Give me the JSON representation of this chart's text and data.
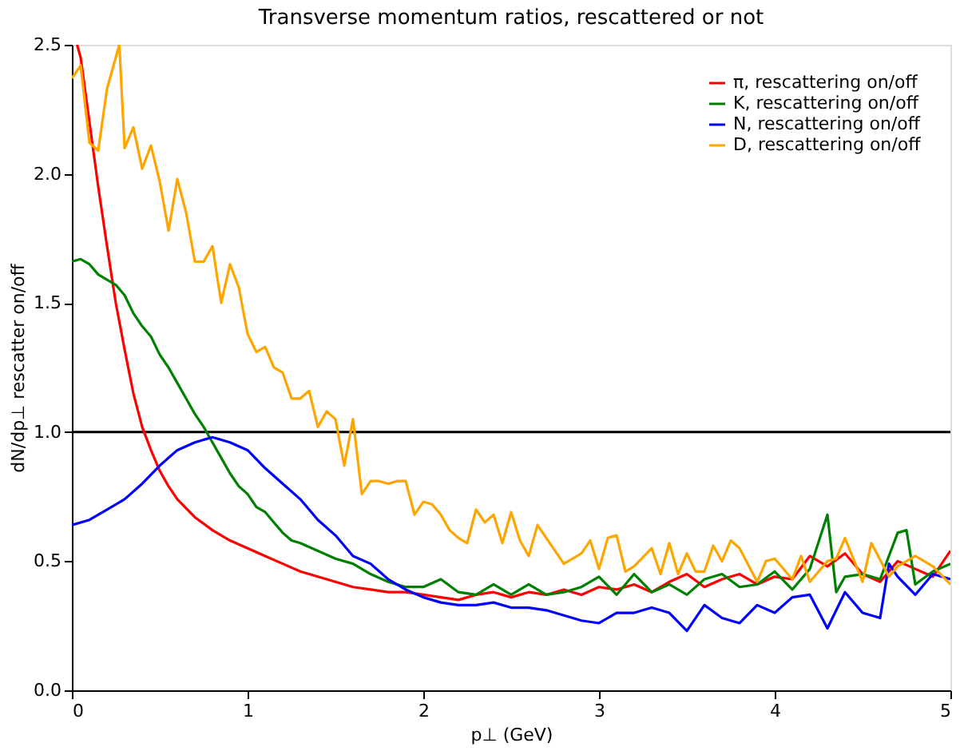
{
  "chart_data": {
    "type": "line",
    "title": "Transverse momentum ratios, rescattered or not",
    "xlabel": "p⊥ (GeV)",
    "ylabel": "dN/dp⊥ rescatter on/off",
    "xlim": [
      0,
      5
    ],
    "ylim": [
      0,
      2.5
    ],
    "xticks": [
      0,
      1,
      2,
      3,
      4,
      5
    ],
    "yticks": [
      {
        "value": 0,
        "label": "0.0"
      },
      {
        "value": 0.5,
        "label": "0.5"
      },
      {
        "value": 1,
        "label": "1.0"
      },
      {
        "value": 1.5,
        "label": "1.5"
      },
      {
        "value": 2,
        "label": "2.0"
      },
      {
        "value": 2.5,
        "label": "2.5"
      }
    ],
    "legend": "top right",
    "grid": false,
    "marker": "none",
    "line_style": "solid",
    "ref_lines": [
      {
        "axis": "y",
        "value": 1,
        "label": null,
        "color": "#000000"
      }
    ],
    "series": [
      {
        "name": "π, rescattering on/off",
        "color": "#ff0000",
        "x": [
          0.03,
          0.05,
          0.1,
          0.15,
          0.2,
          0.25,
          0.3,
          0.35,
          0.4,
          0.45,
          0.5,
          0.55,
          0.6,
          0.7,
          0.8,
          0.9,
          1.0,
          1.1,
          1.2,
          1.3,
          1.4,
          1.5,
          1.6,
          1.7,
          1.8,
          1.9,
          2.0,
          2.1,
          2.2,
          2.3,
          2.4,
          2.5,
          2.6,
          2.7,
          2.8,
          2.9,
          3.0,
          3.1,
          3.2,
          3.3,
          3.4,
          3.5,
          3.6,
          3.7,
          3.8,
          3.9,
          4.0,
          4.1,
          4.2,
          4.3,
          4.4,
          4.5,
          4.6,
          4.7,
          4.8,
          4.9,
          5.0
        ],
        "values": [
          2.5,
          2.45,
          2.2,
          1.95,
          1.72,
          1.5,
          1.32,
          1.15,
          1.02,
          0.93,
          0.85,
          0.79,
          0.74,
          0.67,
          0.62,
          0.58,
          0.55,
          0.52,
          0.49,
          0.46,
          0.44,
          0.42,
          0.4,
          0.39,
          0.38,
          0.38,
          0.37,
          0.36,
          0.35,
          0.37,
          0.38,
          0.36,
          0.38,
          0.37,
          0.39,
          0.37,
          0.4,
          0.39,
          0.41,
          0.38,
          0.42,
          0.45,
          0.4,
          0.43,
          0.45,
          0.41,
          0.44,
          0.43,
          0.52,
          0.48,
          0.53,
          0.45,
          0.42,
          0.5,
          0.47,
          0.44,
          0.54
        ]
      },
      {
        "name": "K, rescattering on/off",
        "color": "#008000",
        "x": [
          0,
          0.05,
          0.1,
          0.15,
          0.2,
          0.25,
          0.3,
          0.35,
          0.4,
          0.45,
          0.5,
          0.55,
          0.6,
          0.65,
          0.7,
          0.75,
          0.8,
          0.85,
          0.9,
          0.95,
          1.0,
          1.05,
          1.1,
          1.15,
          1.2,
          1.25,
          1.3,
          1.4,
          1.5,
          1.6,
          1.7,
          1.8,
          1.9,
          2.0,
          2.1,
          2.2,
          2.3,
          2.4,
          2.5,
          2.6,
          2.7,
          2.8,
          2.9,
          3.0,
          3.1,
          3.2,
          3.3,
          3.4,
          3.5,
          3.6,
          3.7,
          3.8,
          3.9,
          4.0,
          4.1,
          4.2,
          4.3,
          4.35,
          4.4,
          4.5,
          4.6,
          4.7,
          4.75,
          4.8,
          4.9,
          5.0
        ],
        "values": [
          1.66,
          1.67,
          1.65,
          1.61,
          1.59,
          1.57,
          1.53,
          1.46,
          1.41,
          1.37,
          1.3,
          1.25,
          1.19,
          1.13,
          1.07,
          1.02,
          0.96,
          0.9,
          0.84,
          0.79,
          0.76,
          0.71,
          0.69,
          0.65,
          0.61,
          0.58,
          0.57,
          0.54,
          0.51,
          0.49,
          0.45,
          0.42,
          0.4,
          0.4,
          0.43,
          0.38,
          0.37,
          0.41,
          0.37,
          0.41,
          0.37,
          0.38,
          0.4,
          0.44,
          0.37,
          0.45,
          0.38,
          0.41,
          0.37,
          0.43,
          0.45,
          0.4,
          0.41,
          0.46,
          0.39,
          0.47,
          0.68,
          0.38,
          0.44,
          0.45,
          0.43,
          0.61,
          0.62,
          0.41,
          0.46,
          0.49
        ]
      },
      {
        "name": "N, rescattering on/off",
        "color": "#0000ff",
        "x": [
          0,
          0.1,
          0.2,
          0.3,
          0.4,
          0.5,
          0.6,
          0.7,
          0.8,
          0.9,
          1.0,
          1.1,
          1.2,
          1.3,
          1.4,
          1.5,
          1.6,
          1.7,
          1.8,
          1.9,
          2.0,
          2.1,
          2.2,
          2.3,
          2.4,
          2.5,
          2.6,
          2.7,
          2.8,
          2.9,
          3.0,
          3.1,
          3.2,
          3.3,
          3.4,
          3.5,
          3.6,
          3.7,
          3.8,
          3.9,
          4.0,
          4.1,
          4.2,
          4.3,
          4.4,
          4.5,
          4.6,
          4.65,
          4.7,
          4.8,
          4.9,
          5.0
        ],
        "values": [
          0.64,
          0.66,
          0.7,
          0.74,
          0.8,
          0.87,
          0.93,
          0.96,
          0.98,
          0.96,
          0.93,
          0.86,
          0.8,
          0.74,
          0.66,
          0.6,
          0.52,
          0.49,
          0.43,
          0.39,
          0.36,
          0.34,
          0.33,
          0.33,
          0.34,
          0.32,
          0.32,
          0.31,
          0.29,
          0.27,
          0.26,
          0.3,
          0.3,
          0.32,
          0.3,
          0.23,
          0.33,
          0.28,
          0.26,
          0.33,
          0.3,
          0.36,
          0.37,
          0.24,
          0.38,
          0.3,
          0.28,
          0.49,
          0.44,
          0.37,
          0.45,
          0.43
        ]
      },
      {
        "name": "D, rescattering on/off",
        "color": "#ffa500",
        "x": [
          0,
          0.05,
          0.1,
          0.15,
          0.2,
          0.27,
          0.3,
          0.35,
          0.4,
          0.45,
          0.5,
          0.55,
          0.6,
          0.65,
          0.7,
          0.75,
          0.8,
          0.85,
          0.9,
          0.95,
          1.0,
          1.05,
          1.1,
          1.15,
          1.2,
          1.25,
          1.3,
          1.35,
          1.4,
          1.45,
          1.5,
          1.55,
          1.6,
          1.65,
          1.7,
          1.75,
          1.8,
          1.85,
          1.9,
          1.95,
          2.0,
          2.05,
          2.1,
          2.15,
          2.2,
          2.25,
          2.3,
          2.35,
          2.4,
          2.45,
          2.5,
          2.55,
          2.6,
          2.65,
          2.7,
          2.8,
          2.9,
          2.95,
          3.0,
          3.05,
          3.1,
          3.15,
          3.2,
          3.3,
          3.35,
          3.4,
          3.45,
          3.5,
          3.55,
          3.6,
          3.65,
          3.7,
          3.75,
          3.8,
          3.9,
          3.95,
          4.0,
          4.1,
          4.15,
          4.2,
          4.3,
          4.35,
          4.4,
          4.5,
          4.55,
          4.65,
          4.7,
          4.8,
          4.9,
          5.0
        ],
        "values": [
          2.37,
          2.42,
          2.12,
          2.09,
          2.33,
          2.5,
          2.1,
          2.18,
          2.02,
          2.11,
          1.97,
          1.78,
          1.98,
          1.85,
          1.66,
          1.66,
          1.72,
          1.5,
          1.65,
          1.56,
          1.38,
          1.31,
          1.33,
          1.25,
          1.23,
          1.13,
          1.13,
          1.16,
          1.02,
          1.08,
          1.05,
          0.87,
          1.05,
          0.76,
          0.81,
          0.81,
          0.8,
          0.81,
          0.81,
          0.68,
          0.73,
          0.72,
          0.68,
          0.62,
          0.59,
          0.57,
          0.7,
          0.65,
          0.68,
          0.57,
          0.69,
          0.58,
          0.52,
          0.64,
          0.59,
          0.49,
          0.53,
          0.58,
          0.47,
          0.59,
          0.6,
          0.46,
          0.48,
          0.55,
          0.45,
          0.57,
          0.45,
          0.53,
          0.46,
          0.46,
          0.56,
          0.5,
          0.58,
          0.55,
          0.42,
          0.5,
          0.51,
          0.43,
          0.52,
          0.42,
          0.5,
          0.51,
          0.59,
          0.42,
          0.57,
          0.44,
          0.48,
          0.52,
          0.48,
          0.41
        ]
      }
    ]
  }
}
